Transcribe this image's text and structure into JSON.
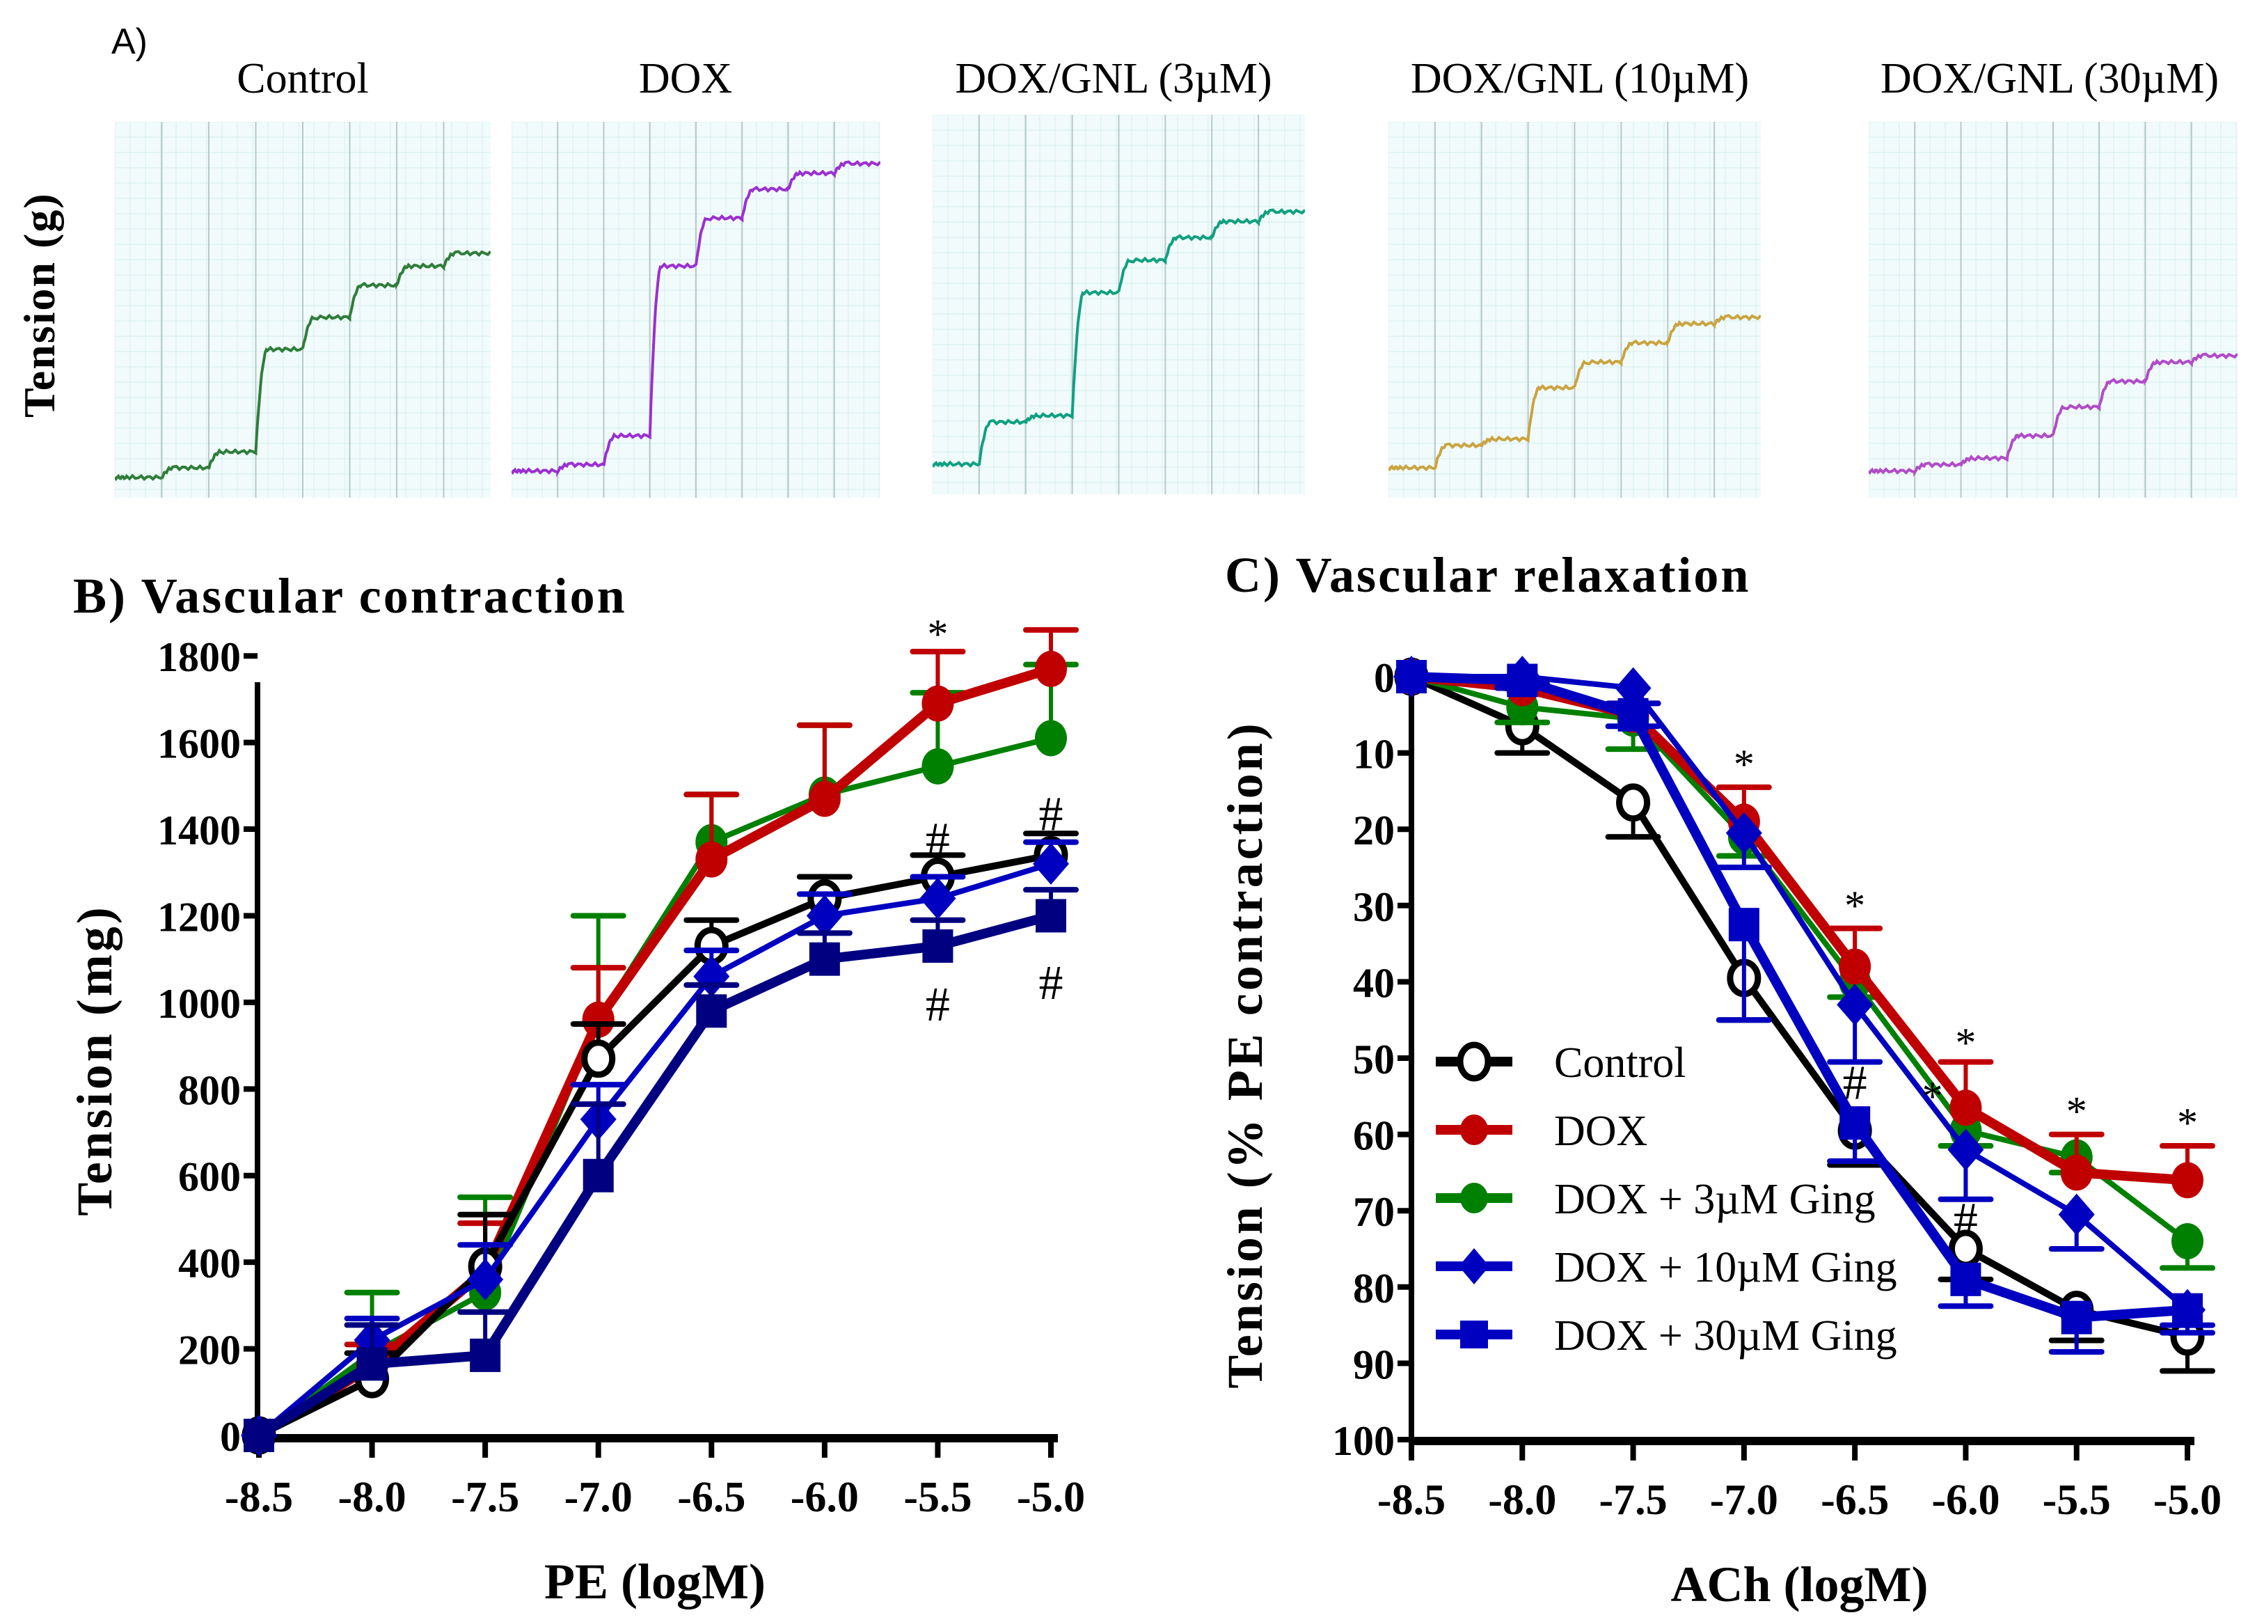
{
  "panel_a": {
    "label": "A)",
    "ylabel": "Tension (g)",
    "traces": [
      {
        "title": "Control",
        "color": "#2f7d3a",
        "steps": [
          0.02,
          0.05,
          0.1,
          0.42,
          0.52,
          0.62,
          0.68,
          0.72
        ]
      },
      {
        "title": "DOX",
        "color": "#9b30d0",
        "steps": [
          0.04,
          0.06,
          0.15,
          0.68,
          0.83,
          0.92,
          0.97,
          1.0
        ]
      },
      {
        "title": "DOX/GNL (3µM)",
        "color": "#10a080",
        "steps": [
          0.05,
          0.18,
          0.2,
          0.58,
          0.68,
          0.75,
          0.8,
          0.83
        ]
      },
      {
        "title": "DOX/GNL (10µM)",
        "color": "#c9a441",
        "steps": [
          0.05,
          0.12,
          0.14,
          0.3,
          0.38,
          0.44,
          0.5,
          0.52
        ]
      },
      {
        "title": "DOX/GNL (30µM)",
        "color": "#b04cc8",
        "steps": [
          0.04,
          0.06,
          0.08,
          0.15,
          0.24,
          0.32,
          0.38,
          0.4
        ]
      }
    ]
  },
  "chart_data": [
    {
      "type": "line",
      "title": "B) Vascular contraction",
      "xlabel": "PE (logM)",
      "ylabel": "Tension (mg)",
      "x": [
        -8.5,
        -8.0,
        -7.5,
        -7.0,
        -6.5,
        -6.0,
        -5.5,
        -5.0
      ],
      "xticks": [
        "-8.5",
        "-8.0",
        "-7.5",
        "-7.0",
        "-6.5",
        "-6.0",
        "-5.5",
        "-5.0"
      ],
      "yticks": [
        "0",
        "200",
        "400",
        "600",
        "800",
        "1000",
        "1200",
        "1400",
        "1600",
        "1800"
      ],
      "ylim": [
        0,
        1900
      ],
      "y_inverted": false,
      "series": [
        {
          "name": "Control",
          "color": "#000000",
          "marker": "open-circle",
          "values": [
            0,
            130,
            390,
            870,
            1130,
            1240,
            1290,
            1340
          ],
          "errors": [
            0,
            60,
            120,
            80,
            60,
            50,
            50,
            50
          ]
        },
        {
          "name": "DOX",
          "color": "#c00000",
          "marker": "circle",
          "values": [
            0,
            160,
            380,
            960,
            1330,
            1470,
            1690,
            1770
          ],
          "errors": [
            0,
            50,
            110,
            120,
            150,
            170,
            120,
            90
          ]
        },
        {
          "name": "DOX + 3µM Ging",
          "color": "#008000",
          "marker": "circle",
          "values": [
            0,
            190,
            330,
            960,
            1370,
            1480,
            1545,
            1610
          ],
          "errors": [
            0,
            140,
            220,
            240,
            110,
            160,
            170,
            170
          ]
        },
        {
          "name": "DOX + 10µM Ging",
          "color": "#0000c0",
          "marker": "diamond",
          "values": [
            0,
            220,
            360,
            730,
            1060,
            1200,
            1240,
            1320
          ],
          "errors": [
            0,
            50,
            80,
            80,
            60,
            50,
            50,
            50
          ]
        },
        {
          "name": "DOX + 30µM Ging",
          "color": "#000080",
          "marker": "square",
          "values": [
            0,
            165,
            185,
            600,
            980,
            1100,
            1130,
            1200
          ],
          "errors": [
            0,
            90,
            100,
            165,
            60,
            60,
            60,
            60
          ]
        }
      ],
      "annotations": [
        {
          "text": "*",
          "x": -5.5,
          "y": 1850
        },
        {
          "text": "*",
          "x": -5.0,
          "y": 1910
        },
        {
          "text": "#",
          "x": -5.5,
          "y": 1370
        },
        {
          "text": "#",
          "x": -5.0,
          "y": 1430
        },
        {
          "text": "#",
          "x": -5.5,
          "y": 990
        },
        {
          "text": "#",
          "x": -5.0,
          "y": 1040
        }
      ]
    },
    {
      "type": "line",
      "title": "C) Vascular relaxation",
      "xlabel": "ACh (logM)",
      "ylabel": "Tension (% PE contraction)",
      "x": [
        -8.5,
        -8.0,
        -7.5,
        -7.0,
        -6.5,
        -6.0,
        -5.5,
        -5.0
      ],
      "xticks": [
        "-8.5",
        "-8.0",
        "-7.5",
        "-7.0",
        "-6.5",
        "-6.0",
        "-5.5",
        "-5.0"
      ],
      "yticks": [
        "0",
        "10",
        "20",
        "30",
        "40",
        "50",
        "60",
        "70",
        "80",
        "90",
        "100"
      ],
      "ylim": [
        0,
        100
      ],
      "y_inverted": true,
      "series": [
        {
          "name": "Control",
          "color": "#000000",
          "marker": "open-circle",
          "values": [
            0,
            6.5,
            16.5,
            39.5,
            59.5,
            75,
            83,
            86.5
          ],
          "errors": [
            0,
            3.5,
            4.5,
            5.5,
            4.5,
            4,
            4,
            4.5
          ]
        },
        {
          "name": "DOX",
          "color": "#c00000",
          "marker": "circle",
          "values": [
            0,
            1.5,
            5,
            19,
            38,
            56.5,
            65,
            66
          ],
          "errors": [
            0,
            1,
            1.5,
            4.5,
            5,
            6,
            5,
            4.5
          ]
        },
        {
          "name": "DOX + 3µM Ging",
          "color": "#008000",
          "marker": "circle",
          "values": [
            0,
            4,
            5.5,
            21,
            40,
            59.5,
            63,
            74
          ],
          "errors": [
            0,
            2,
            4,
            2.5,
            2,
            2,
            2,
            3.5
          ]
        },
        {
          "name": "DOX + 10µM Ging",
          "color": "#0000c0",
          "marker": "diamond",
          "values": [
            0,
            0,
            1.5,
            20.5,
            43,
            62,
            70.5,
            83
          ],
          "errors": [
            0,
            1,
            2,
            4.5,
            7.5,
            6.5,
            4.5,
            3
          ]
        },
        {
          "name": "DOX + 30µM Ging",
          "color": "#0000c0",
          "marker": "square",
          "values": [
            0,
            0.5,
            5,
            32.5,
            58.5,
            79,
            84,
            83
          ],
          "errors": [
            0,
            1,
            1.5,
            12.5,
            5,
            3.5,
            4.5,
            2
          ]
        }
      ],
      "annotations": [
        {
          "text": "*",
          "x": -7.0,
          "y": 11.5
        },
        {
          "text": "*",
          "x": -6.5,
          "y": 30
        },
        {
          "text": "#",
          "x": -6.5,
          "y": 53.5
        },
        {
          "text": "*",
          "x": -6.0,
          "y": 48
        },
        {
          "text": "*",
          "x": -6.15,
          "y": 55
        },
        {
          "text": "#",
          "x": -6.0,
          "y": 71.5
        },
        {
          "text": "*",
          "x": -5.5,
          "y": 57
        },
        {
          "text": "*",
          "x": -5.0,
          "y": 58.5
        }
      ],
      "legend": {
        "placement": "center-left"
      }
    }
  ]
}
